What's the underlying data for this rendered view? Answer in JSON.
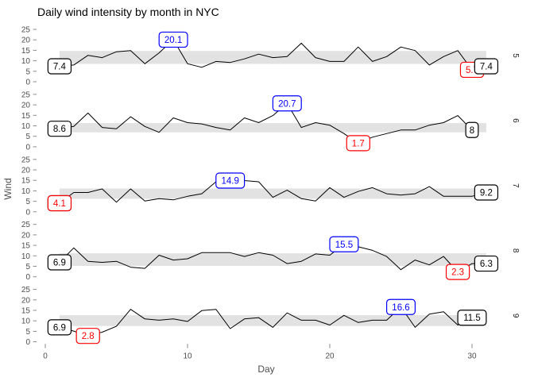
{
  "title": "Daily wind intensity by month in NYC",
  "chart_data": {
    "type": "line",
    "title": "Daily wind intensity by month in NYC",
    "xlabel": "Day",
    "ylabel": "Wind",
    "x_ticks": [
      0,
      10,
      20,
      30
    ],
    "y_ticks": [
      0,
      5,
      10,
      15,
      20,
      25
    ],
    "xlim": [
      0,
      31
    ],
    "ylim": [
      0,
      25
    ],
    "grid": false,
    "legend": "none",
    "facet_strip_side": "right",
    "colors": {
      "line": "#000000",
      "band": "#e2e2e2",
      "label_max": "#0000ff",
      "label_min": "#ff0000",
      "label_endpoint": "#000000",
      "label_fill": "#ffffff",
      "axis_text": "#4d4d4d",
      "strip_text": "#1a1a1a",
      "tick_mark": "#8c8c8c",
      "background": "#ffffff"
    },
    "facets": [
      {
        "month": "5",
        "band": [
          8.5,
          14.7
        ],
        "values": [
          7.4,
          8.0,
          12.6,
          11.5,
          14.3,
          14.9,
          8.6,
          13.8,
          20.1,
          8.6,
          6.9,
          9.7,
          9.2,
          10.9,
          13.2,
          11.5,
          12.0,
          18.4,
          11.5,
          9.7,
          9.7,
          16.6,
          9.7,
          12.0,
          16.6,
          14.9,
          8.0,
          12.0,
          14.9,
          5.7,
          7.4
        ],
        "labels": [
          {
            "kind": "first",
            "day": 1,
            "value": 7.4,
            "text": "7.4",
            "color": "#000000"
          },
          {
            "kind": "max",
            "day": 9,
            "value": 20.1,
            "text": "20.1",
            "color": "#0000ff"
          },
          {
            "kind": "min",
            "day": 30,
            "value": 5.7,
            "text": "5.7",
            "color": "#ff0000"
          },
          {
            "kind": "last",
            "day": 31,
            "value": 7.4,
            "text": "7.4",
            "color": "#000000"
          }
        ]
      },
      {
        "month": "6",
        "band": [
          6.9,
          11.3
        ],
        "values": [
          8.6,
          9.7,
          16.1,
          9.2,
          8.6,
          14.3,
          9.7,
          6.9,
          13.8,
          11.5,
          10.9,
          9.2,
          8.0,
          13.8,
          11.5,
          14.9,
          20.7,
          9.2,
          11.5,
          10.3,
          6.3,
          1.7,
          4.6,
          6.3,
          8.0,
          8.0,
          10.3,
          11.5,
          14.9,
          8.0
        ],
        "labels": [
          {
            "kind": "first",
            "day": 1,
            "value": 8.6,
            "text": "8.6",
            "color": "#000000"
          },
          {
            "kind": "max",
            "day": 17,
            "value": 20.7,
            "text": "20.7",
            "color": "#0000ff"
          },
          {
            "kind": "min",
            "day": 22,
            "value": 1.7,
            "text": "1.7",
            "color": "#ff0000"
          },
          {
            "kind": "last",
            "day": 30,
            "value": 8.0,
            "text": "8",
            "color": "#000000"
          }
        ]
      },
      {
        "month": "7",
        "band": [
          6.2,
          11.1
        ],
        "values": [
          4.1,
          9.2,
          9.2,
          10.9,
          4.6,
          10.9,
          5.1,
          6.3,
          5.7,
          7.4,
          8.6,
          14.3,
          14.9,
          14.9,
          14.3,
          6.9,
          10.3,
          6.3,
          5.1,
          11.5,
          6.9,
          9.7,
          11.5,
          8.6,
          8.0,
          8.6,
          12.0,
          7.4,
          7.4,
          7.4,
          9.2
        ],
        "labels": [
          {
            "kind": "first",
            "day": 1,
            "value": 4.1,
            "text": "4.1",
            "color": "#000000"
          },
          {
            "kind": "max",
            "day": 13,
            "value": 14.9,
            "text": "14.9",
            "color": "#0000ff"
          },
          {
            "kind": "min",
            "day": 1,
            "value": 4.1,
            "text": "4.1",
            "color": "#ff0000"
          },
          {
            "kind": "last",
            "day": 31,
            "value": 9.2,
            "text": "9.2",
            "color": "#000000"
          }
        ]
      },
      {
        "month": "8",
        "band": [
          5.2,
          11.2
        ],
        "values": [
          6.9,
          13.8,
          7.4,
          6.9,
          7.4,
          4.6,
          4.0,
          10.3,
          8.0,
          8.6,
          11.5,
          11.5,
          11.5,
          9.7,
          11.5,
          10.3,
          6.3,
          7.4,
          10.9,
          10.3,
          15.5,
          14.3,
          12.6,
          9.7,
          3.4,
          8.0,
          5.7,
          9.7,
          2.3,
          6.3,
          6.3
        ],
        "labels": [
          {
            "kind": "first",
            "day": 1,
            "value": 6.9,
            "text": "6.9",
            "color": "#000000"
          },
          {
            "kind": "max",
            "day": 21,
            "value": 15.5,
            "text": "15.5",
            "color": "#0000ff"
          },
          {
            "kind": "min",
            "day": 29,
            "value": 2.3,
            "text": "2.3",
            "color": "#ff0000"
          },
          {
            "kind": "last",
            "day": 31,
            "value": 6.3,
            "text": "6.3",
            "color": "#000000"
          }
        ]
      },
      {
        "month": "9",
        "band": [
          7.5,
          12.7
        ],
        "values": [
          6.9,
          5.1,
          2.8,
          4.6,
          7.4,
          15.5,
          10.9,
          10.3,
          10.9,
          9.7,
          14.9,
          15.5,
          6.3,
          10.9,
          11.5,
          6.9,
          13.8,
          10.3,
          10.3,
          8.0,
          12.6,
          9.2,
          10.3,
          10.3,
          16.6,
          6.9,
          13.2,
          14.3,
          8.0,
          11.5
        ],
        "labels": [
          {
            "kind": "first",
            "day": 1,
            "value": 6.9,
            "text": "6.9",
            "color": "#000000"
          },
          {
            "kind": "max",
            "day": 25,
            "value": 16.6,
            "text": "16.6",
            "color": "#0000ff"
          },
          {
            "kind": "min",
            "day": 3,
            "value": 2.8,
            "text": "2.8",
            "color": "#ff0000"
          },
          {
            "kind": "last",
            "day": 30,
            "value": 11.5,
            "text": "11.5",
            "color": "#000000"
          }
        ]
      }
    ]
  }
}
